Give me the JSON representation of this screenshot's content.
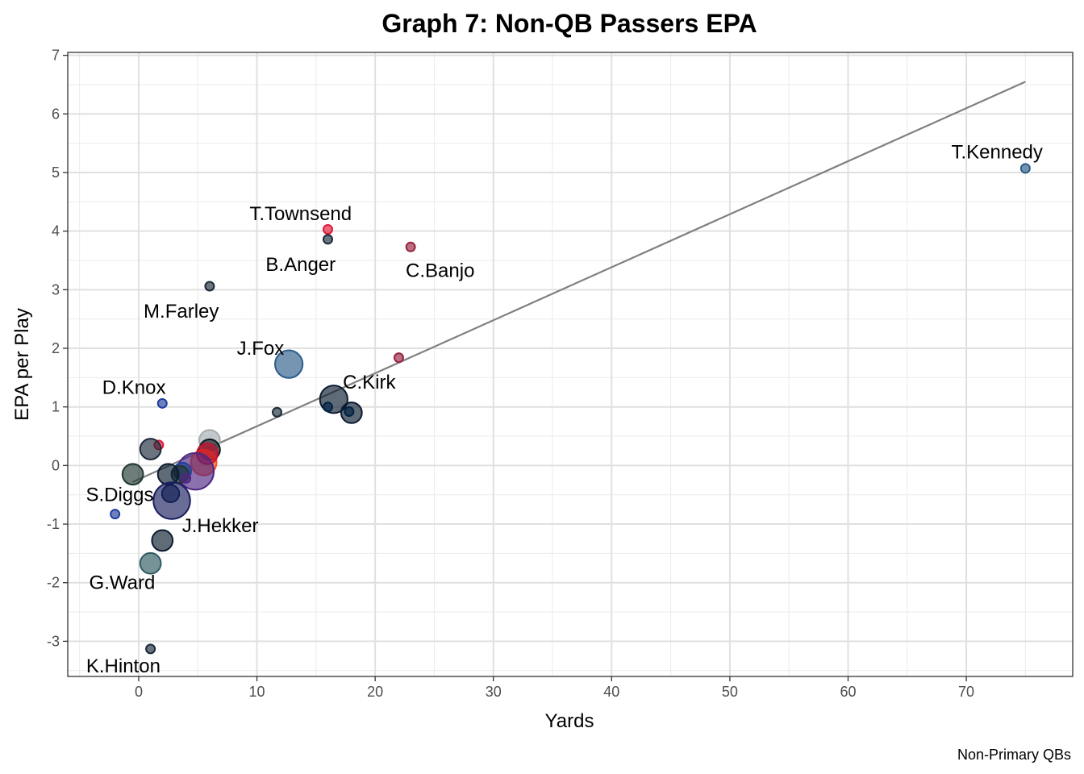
{
  "chart_data": {
    "type": "scatter",
    "title": "Graph 7: Non-QB Passers EPA",
    "xlabel": "Yards",
    "ylabel": "EPA per Play",
    "caption": "Non-Primary QBs",
    "xlim": [
      -6,
      79
    ],
    "ylim": [
      -3.6,
      7.05
    ],
    "x_ticks": [
      0,
      10,
      20,
      30,
      40,
      50,
      60,
      70
    ],
    "y_ticks": [
      -3,
      -2,
      -1,
      0,
      1,
      2,
      3,
      4,
      5,
      6,
      7
    ],
    "grid": true,
    "trend_line": {
      "x": [
        -0.5,
        75
      ],
      "y": [
        -0.28,
        6.55
      ],
      "color": "#808080"
    },
    "points": [
      {
        "x": 75,
        "y": 5.07,
        "size": 1,
        "color": "#2b5c8a"
      },
      {
        "x": 16,
        "y": 4.03,
        "size": 1,
        "color": "#e31837"
      },
      {
        "x": 16,
        "y": 3.86,
        "size": 1,
        "color": "#1b2a3a"
      },
      {
        "x": 23,
        "y": 3.73,
        "size": 1,
        "color": "#97233f"
      },
      {
        "x": 6,
        "y": 3.06,
        "size": 1,
        "color": "#1b2a3a"
      },
      {
        "x": 12.7,
        "y": 1.73,
        "size": 6,
        "color": "#2b5c8a"
      },
      {
        "x": 22,
        "y": 1.84,
        "size": 1,
        "color": "#97233f"
      },
      {
        "x": 16.5,
        "y": 1.13,
        "size": 6,
        "color": "#0b1b30"
      },
      {
        "x": 11.7,
        "y": 0.91,
        "size": 1,
        "color": "#1b2a3a"
      },
      {
        "x": 16,
        "y": 1.0,
        "size": 1,
        "color": "#002244"
      },
      {
        "x": 18,
        "y": 0.9,
        "size": 3,
        "color": "#0b1b30"
      },
      {
        "x": 17.8,
        "y": 0.92,
        "size": 1,
        "color": "#002244"
      },
      {
        "x": 2,
        "y": 1.06,
        "size": 1,
        "color": "#203d9c"
      },
      {
        "x": 1.7,
        "y": 0.35,
        "size": 1,
        "color": "#e31837"
      },
      {
        "x": 1,
        "y": 0.28,
        "size": 3,
        "color": "#1b2a3a"
      },
      {
        "x": 6,
        "y": 0.43,
        "size": 3,
        "color": "#a5acaf"
      },
      {
        "x": 6,
        "y": 0.27,
        "size": 3,
        "color": "#101820"
      },
      {
        "x": 5.5,
        "y": 0.05,
        "size": 5,
        "color": "#fb4f14"
      },
      {
        "x": 5.8,
        "y": 0.2,
        "size": 3,
        "color": "#c8102e"
      },
      {
        "x": 4.8,
        "y": -0.1,
        "size": 12,
        "color": "#4f2683"
      },
      {
        "x": 3.7,
        "y": -0.1,
        "size": 2,
        "color": "#203d9c"
      },
      {
        "x": 3.5,
        "y": -0.15,
        "size": 2,
        "color": "#203731"
      },
      {
        "x": 4,
        "y": -0.22,
        "size": 1,
        "color": "#4f2683"
      },
      {
        "x": -0.5,
        "y": -0.15,
        "size": 3,
        "color": "#203731"
      },
      {
        "x": 2.5,
        "y": -0.15,
        "size": 3,
        "color": "#0b1b30"
      },
      {
        "x": 2.7,
        "y": -0.48,
        "size": 2,
        "color": "#002244"
      },
      {
        "x": 2.8,
        "y": -0.6,
        "size": 12,
        "color": "#1a1e5e"
      },
      {
        "x": -2,
        "y": -0.83,
        "size": 1,
        "color": "#203d9c"
      },
      {
        "x": 2,
        "y": -1.28,
        "size": 3,
        "color": "#0b1b30"
      },
      {
        "x": 1,
        "y": -1.67,
        "size": 3,
        "color": "#2d5a5f"
      },
      {
        "x": 1,
        "y": -3.13,
        "size": 1,
        "color": "#1b2a3a"
      }
    ],
    "labels": [
      {
        "text": "T.Kennedy",
        "x": 72.6,
        "y": 5.35
      },
      {
        "text": "T.Townsend",
        "x": 13.7,
        "y": 4.3
      },
      {
        "text": "B.Anger",
        "x": 13.7,
        "y": 3.43
      },
      {
        "text": "C.Banjo",
        "x": 25.5,
        "y": 3.33
      },
      {
        "text": "M.Farley",
        "x": 3.6,
        "y": 2.63
      },
      {
        "text": "J.Fox",
        "x": 10.3,
        "y": 2.0
      },
      {
        "text": "C.Kirk",
        "x": 19.5,
        "y": 1.42
      },
      {
        "text": "D.Knox",
        "x": -0.4,
        "y": 1.33
      },
      {
        "text": "S.Diggs",
        "x": -1.6,
        "y": -0.5
      },
      {
        "text": "J.Hekker",
        "x": 6.9,
        "y": -1.03
      },
      {
        "text": "G.Ward",
        "x": -1.4,
        "y": -2.0
      },
      {
        "text": "K.Hinton",
        "x": -1.3,
        "y": -3.42
      }
    ]
  }
}
